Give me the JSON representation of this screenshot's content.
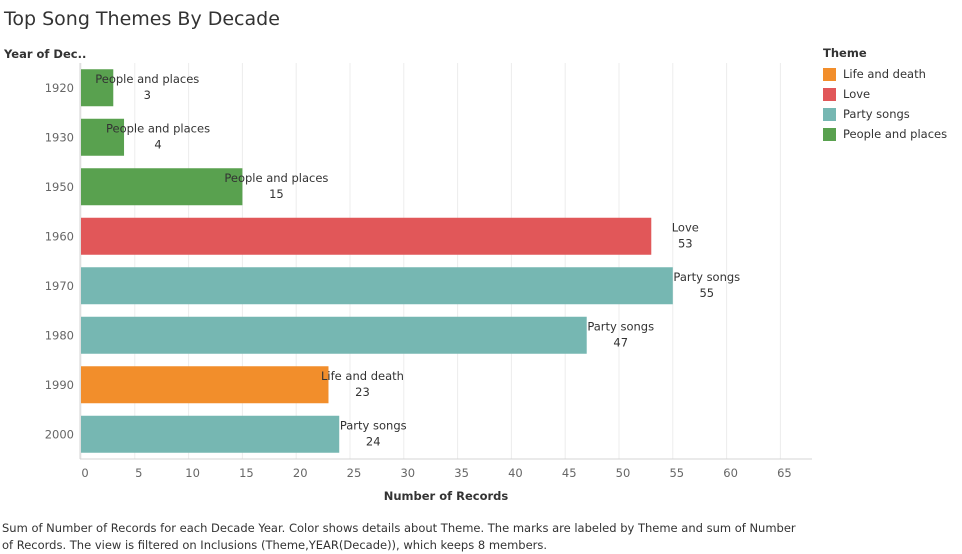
{
  "title": "Top Song Themes By Decade",
  "row_header": "Year of Dec..",
  "legend": {
    "title": "Theme",
    "items": [
      {
        "label": "Life and death",
        "color": "#f28e2b"
      },
      {
        "label": "Love",
        "color": "#e15759"
      },
      {
        "label": "Party songs",
        "color": "#76b7b2"
      },
      {
        "label": "People and places",
        "color": "#59a14f"
      }
    ]
  },
  "caption": "Sum of Number of Records for each Decade Year.  Color shows details about Theme.  The marks are labeled by Theme and sum of Number of Records. The view is filtered on Inclusions (Theme,YEAR(Decade)), which keeps 8 members.",
  "chart_data": {
    "type": "bar",
    "orientation": "horizontal",
    "categories": [
      "1920",
      "1930",
      "1950",
      "1960",
      "1970",
      "1980",
      "1990",
      "2000"
    ],
    "values": [
      3,
      4,
      15,
      53,
      55,
      47,
      23,
      24
    ],
    "themes": [
      "People and places",
      "People and places",
      "People and places",
      "Love",
      "Party songs",
      "Party songs",
      "Life and death",
      "Party songs"
    ],
    "xlabel": "Number of Records",
    "xlim": [
      0,
      68
    ],
    "xticks": [
      0,
      5,
      10,
      15,
      20,
      25,
      30,
      35,
      40,
      45,
      50,
      55,
      60,
      65
    ],
    "grid": true
  }
}
